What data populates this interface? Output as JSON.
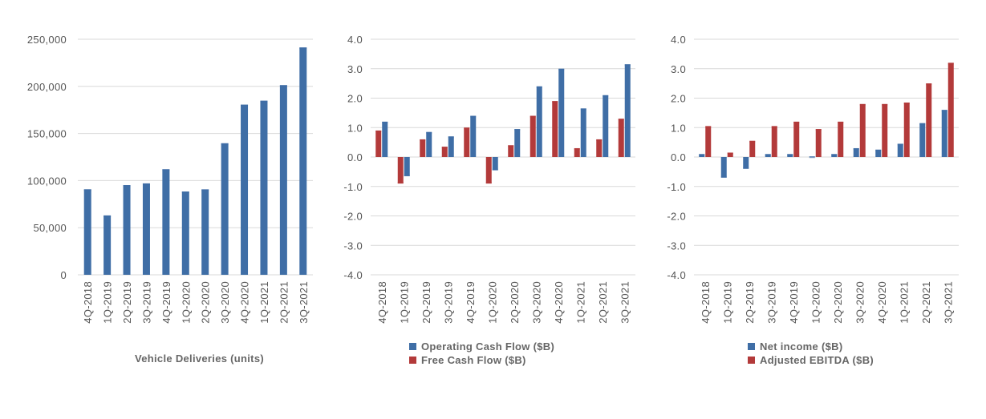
{
  "colors": {
    "blue": "#4472a8",
    "blue_dark": "#2e5a8e",
    "red": "#b33a3a",
    "grid": "#d9d9d9"
  },
  "chart_data": [
    {
      "type": "bar",
      "title": "Vehicle Deliveries (units)",
      "categories": [
        "4Q-2018",
        "1Q-2019",
        "2Q-2019",
        "3Q-2019",
        "4Q-2019",
        "1Q-2020",
        "2Q-2020",
        "3Q-2020",
        "4Q-2020",
        "1Q-2021",
        "2Q-2021",
        "3Q-2021"
      ],
      "series": [
        {
          "name": "Vehicle Deliveries",
          "color": "#3f6ea6",
          "values": [
            90700,
            63000,
            95200,
            97000,
            112000,
            88400,
            90650,
            139600,
            180600,
            184800,
            201300,
            241300
          ]
        }
      ],
      "ylim": [
        0,
        250000
      ],
      "yticks": [
        0,
        50000,
        100000,
        150000,
        200000,
        250000
      ],
      "ytick_labels": [
        "0",
        "50,000",
        "100,000",
        "150,000",
        "200,000",
        "250,000"
      ],
      "legend": []
    },
    {
      "type": "bar",
      "title": "",
      "categories": [
        "4Q-2018",
        "1Q-2019",
        "2Q-2019",
        "3Q-2019",
        "4Q-2019",
        "1Q-2020",
        "2Q-2020",
        "3Q-2020",
        "4Q-2020",
        "1Q-2021",
        "2Q-2021",
        "3Q-2021"
      ],
      "series": [
        {
          "name": "Free Cash Flow ($B)",
          "color": "#b33a3a",
          "values": [
            0.9,
            -0.9,
            0.6,
            0.35,
            1.0,
            -0.9,
            0.4,
            1.4,
            1.9,
            0.3,
            0.6,
            1.3
          ]
        },
        {
          "name": "Operating Cash Flow ($B)",
          "color": "#3f6ea6",
          "values": [
            1.2,
            -0.65,
            0.85,
            0.7,
            1.4,
            -0.45,
            0.95,
            2.4,
            3.0,
            1.65,
            2.1,
            3.15
          ]
        }
      ],
      "ylim": [
        -4.0,
        4.0
      ],
      "yticks": [
        -4,
        -3,
        -2,
        -1,
        0,
        1,
        2,
        3,
        4
      ],
      "ytick_labels": [
        "-4.0",
        "-3.0",
        "-2.0",
        "-1.0",
        "0.0",
        "1.0",
        "2.0",
        "3.0",
        "4.0"
      ],
      "legend": [
        {
          "label": "Operating Cash Flow ($B)",
          "color": "#3f6ea6"
        },
        {
          "label": "Free Cash Flow ($B)",
          "color": "#b33a3a"
        }
      ]
    },
    {
      "type": "bar",
      "title": "",
      "categories": [
        "4Q-2018",
        "1Q-2019",
        "2Q-2019",
        "3Q-2019",
        "4Q-2019",
        "1Q-2020",
        "2Q-2020",
        "3Q-2020",
        "4Q-2020",
        "1Q-2021",
        "2Q-2021",
        "3Q-2021"
      ],
      "series": [
        {
          "name": "Net income ($B)",
          "color": "#3f6ea6",
          "values": [
            0.1,
            -0.7,
            -0.4,
            0.1,
            0.1,
            0.02,
            0.1,
            0.3,
            0.25,
            0.45,
            1.15,
            1.6
          ]
        },
        {
          "name": "Adjusted EBITDA ($B)",
          "color": "#b33a3a",
          "values": [
            1.05,
            0.15,
            0.55,
            1.05,
            1.2,
            0.95,
            1.2,
            1.8,
            1.8,
            1.85,
            2.5,
            3.2
          ]
        }
      ],
      "ylim": [
        -4.0,
        4.0
      ],
      "yticks": [
        -4,
        -3,
        -2,
        -1,
        0,
        1,
        2,
        3,
        4
      ],
      "ytick_labels": [
        "-4.0",
        "-3.0",
        "-2.0",
        "-1.0",
        "0.0",
        "1.0",
        "2.0",
        "3.0",
        "4.0"
      ],
      "legend": [
        {
          "label": "Net income ($B)",
          "color": "#3f6ea6"
        },
        {
          "label": "Adjusted EBITDA ($B)",
          "color": "#b33a3a"
        }
      ]
    }
  ]
}
